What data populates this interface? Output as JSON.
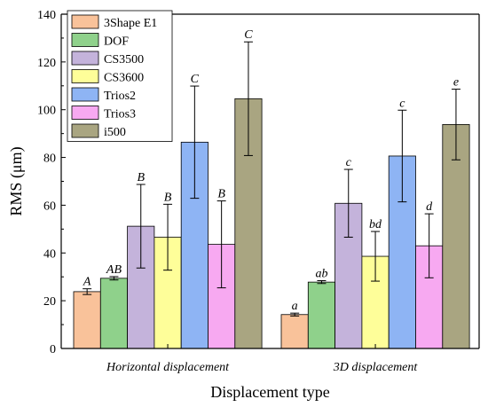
{
  "chart_data": {
    "type": "bar",
    "title": "",
    "xlabel": "Displacement type",
    "ylabel": "RMS (μm)",
    "ylim": [
      0,
      140
    ],
    "yticks": [
      "0",
      "20",
      "40",
      "60",
      "80",
      "100",
      "120",
      "140"
    ],
    "categories": [
      "Horizontal displacement",
      "3D displacement"
    ],
    "legend_position": "top-left",
    "grid": false,
    "series": [
      {
        "name": "3Shape E1",
        "color": "#f9c29a",
        "values": [
          23.8,
          14.2
        ],
        "errors": [
          1.2,
          0.6
        ],
        "sig": [
          "A",
          "a"
        ]
      },
      {
        "name": "DOF",
        "color": "#8fd18b",
        "values": [
          29.4,
          27.8
        ],
        "errors": [
          0.7,
          0.6
        ],
        "sig": [
          "AB",
          "ab"
        ]
      },
      {
        "name": "CS3500",
        "color": "#c4b3db",
        "values": [
          51.2,
          60.8
        ],
        "errors": [
          17.5,
          14.2
        ],
        "sig": [
          "B",
          "c"
        ]
      },
      {
        "name": "CS3600",
        "color": "#fefe99",
        "values": [
          46.6,
          38.6
        ],
        "errors": [
          13.8,
          10.4
        ],
        "sig": [
          "B",
          "bd"
        ]
      },
      {
        "name": "Trios2",
        "color": "#8eb4f4",
        "values": [
          86.4,
          80.6
        ],
        "errors": [
          23.5,
          19.2
        ],
        "sig": [
          "C",
          "c"
        ]
      },
      {
        "name": "Trios3",
        "color": "#f7a9f1",
        "values": [
          43.6,
          43.0
        ],
        "errors": [
          18.2,
          13.4
        ],
        "sig": [
          "B",
          "d"
        ]
      },
      {
        "name": "i500",
        "color": "#a9a581",
        "values": [
          104.6,
          93.8
        ],
        "errors": [
          23.8,
          14.8
        ],
        "sig": [
          "C",
          "e"
        ]
      }
    ]
  }
}
